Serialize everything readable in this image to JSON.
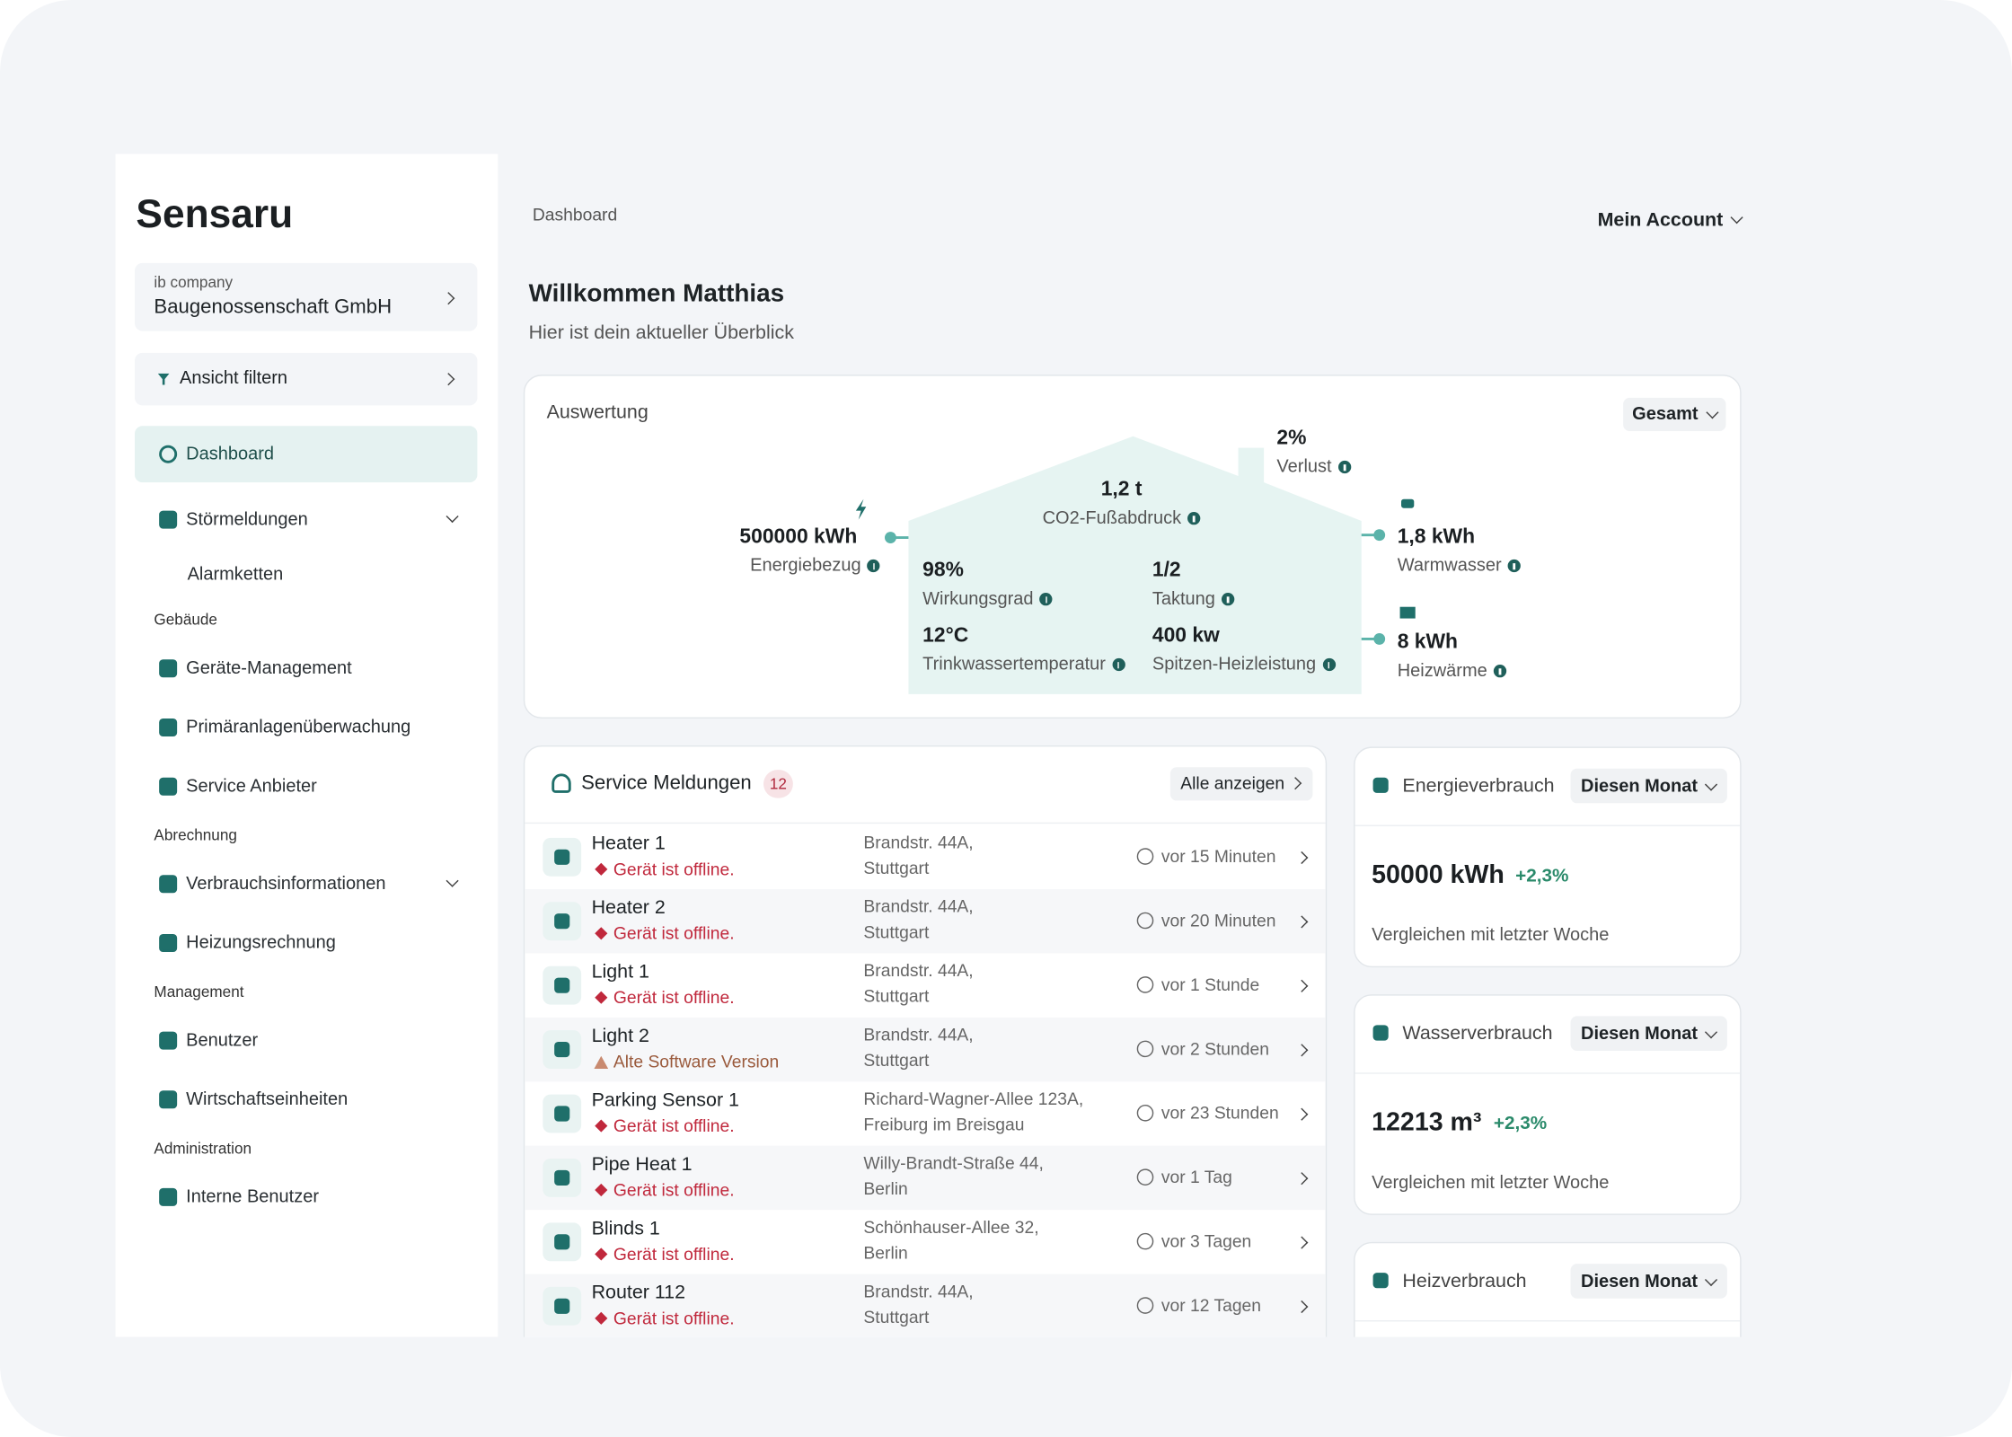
{
  "sidebar": {
    "logo": "Sensaru",
    "company_label": "ib company",
    "company_name": "Baugenossenschaft GmbH",
    "filter": "Ansicht filtern",
    "nav": [
      {
        "items": [
          {
            "label": "Dashboard",
            "active": true
          },
          {
            "label": "Störmeldungen",
            "expandable": true,
            "children": [
              "Alarmketten"
            ]
          }
        ]
      },
      {
        "heading": "Gebäude",
        "items": [
          {
            "label": "Geräte-Management"
          },
          {
            "label": "Primäranlagenüberwachung"
          },
          {
            "label": "Service Anbieter"
          }
        ]
      },
      {
        "heading": "Abrechnung",
        "items": [
          {
            "label": "Verbrauchsinformationen",
            "expandable": true
          },
          {
            "label": "Heizungsrechnung"
          }
        ]
      },
      {
        "heading": "Management",
        "items": [
          {
            "label": "Benutzer"
          },
          {
            "label": "Wirtschaftseinheiten"
          }
        ]
      },
      {
        "heading": "Administration",
        "items": [
          {
            "label": "Interne Benutzer"
          }
        ]
      }
    ]
  },
  "header": {
    "breadcrumb": "Dashboard",
    "account": "Mein Account"
  },
  "welcome": {
    "title": "Willkommen Matthias",
    "subtitle": "Hier ist dein aktueller Überblick"
  },
  "overview": {
    "title": "Auswertung",
    "filter": "Gesamt",
    "metrics": {
      "energy": {
        "value": "500000 kWh",
        "label": "Energiebezug"
      },
      "co2": {
        "value": "1,2 t",
        "label": "CO2-Fußabdruck"
      },
      "loss": {
        "value": "2%",
        "label": "Verlust"
      },
      "efficiency": {
        "value": "98%",
        "label": "Wirkungsgrad"
      },
      "cycling": {
        "value": "1/2",
        "label": "Taktung"
      },
      "water_temp": {
        "value": "12°C",
        "label": "Trinkwassertemperatur"
      },
      "peak": {
        "value": "400 kw",
        "label": "Spitzen-Heizleistung"
      },
      "hot_water": {
        "value": "1,8 kWh",
        "label": "Warmwasser"
      },
      "heat": {
        "value": "8 kWh",
        "label": "Heizwärme"
      }
    }
  },
  "service": {
    "title": "Service Meldungen",
    "count": 12,
    "action": "Alle anzeigen",
    "rows": [
      {
        "device": "Heater 1",
        "status": "Gerät ist offline.",
        "status_kind": "error",
        "address": [
          "Brandstr. 44A,",
          "Stuttgart"
        ],
        "time": "vor 15 Minuten"
      },
      {
        "device": "Heater 2",
        "status": "Gerät ist offline.",
        "status_kind": "error",
        "address": [
          "Brandstr. 44A,",
          "Stuttgart"
        ],
        "time": "vor 20 Minuten"
      },
      {
        "device": "Light 1",
        "status": "Gerät ist offline.",
        "status_kind": "error",
        "address": [
          "Brandstr. 44A,",
          "Stuttgart"
        ],
        "time": "vor 1 Stunde"
      },
      {
        "device": "Light 2",
        "status": "Alte Software Version",
        "status_kind": "warning",
        "address": [
          "Brandstr. 44A,",
          "Stuttgart"
        ],
        "time": "vor 2 Stunden"
      },
      {
        "device": "Parking Sensor 1",
        "status": "Gerät ist offline.",
        "status_kind": "error",
        "address": [
          "Richard-Wagner-Allee 123A,",
          "Freiburg im Breisgau"
        ],
        "time": "vor 23 Stunden"
      },
      {
        "device": "Pipe Heat 1",
        "status": "Gerät ist offline.",
        "status_kind": "error",
        "address": [
          "Willy-Brandt-Straße 44,",
          "Berlin"
        ],
        "time": "vor 1 Tag"
      },
      {
        "device": "Blinds 1",
        "status": "Gerät ist offline.",
        "status_kind": "error",
        "address": [
          "Schönhauser-Allee 32,",
          "Berlin"
        ],
        "time": "vor 3 Tagen"
      },
      {
        "device": "Router 112",
        "status": "Gerät ist offline.",
        "status_kind": "error",
        "address": [
          "Brandstr. 44A,",
          "Stuttgart"
        ],
        "time": "vor 12 Tagen"
      }
    ]
  },
  "consumption": [
    {
      "title": "Energieverbrauch",
      "period": "Diesen Monat",
      "value": "50000 kWh",
      "change": "+2,3%",
      "note": "Vergleichen mit letzter Woche"
    },
    {
      "title": "Wasserverbrauch",
      "period": "Diesen Monat",
      "value": "12213 m³",
      "change": "+2,3%",
      "note": "Vergleichen mit letzter Woche"
    },
    {
      "title": "Heizverbrauch",
      "period": "Diesen Monat"
    }
  ]
}
